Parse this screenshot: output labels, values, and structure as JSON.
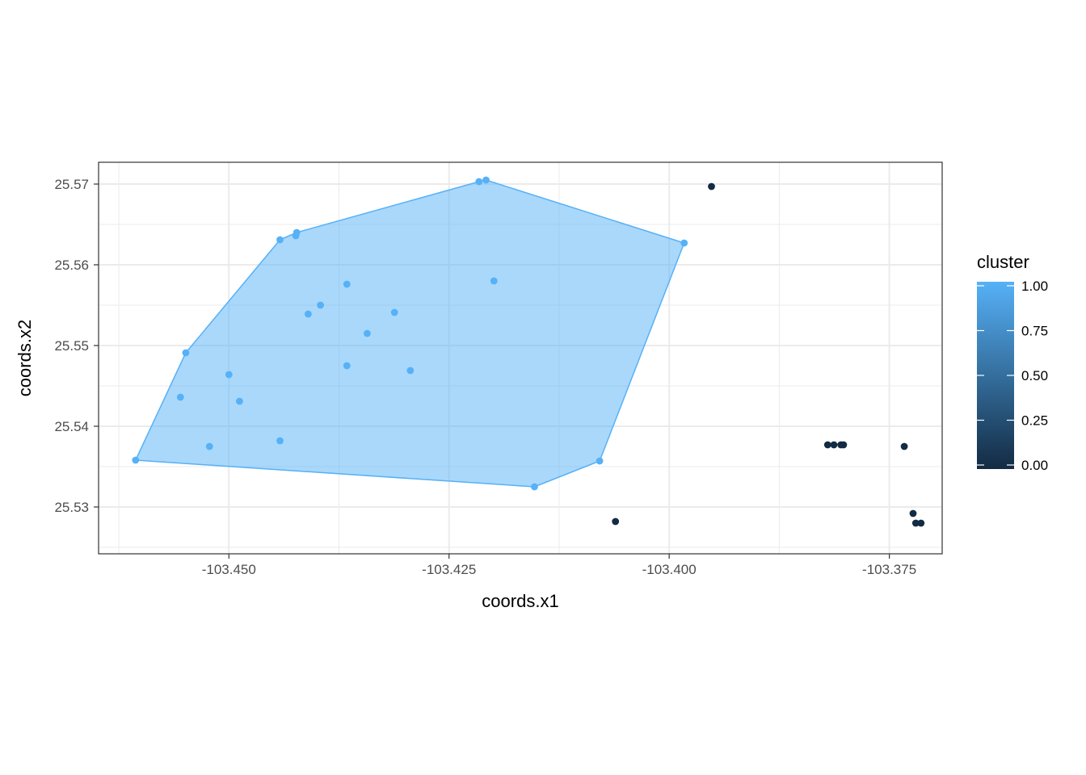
{
  "chart_data": {
    "type": "scatter",
    "title": "",
    "xlabel": "coords.x1",
    "ylabel": "coords.x2",
    "xlim": [
      -103.4648,
      -103.369
    ],
    "ylim": [
      25.5242,
      25.5727
    ],
    "x_ticks": [
      -103.45,
      -103.425,
      -103.4,
      -103.375
    ],
    "x_tick_labels": [
      "-103.450",
      "-103.425",
      "-103.400",
      "-103.375"
    ],
    "y_ticks": [
      25.53,
      25.54,
      25.55,
      25.56,
      25.57
    ],
    "y_tick_labels": [
      "25.53",
      "25.54",
      "25.55",
      "25.56",
      "25.57"
    ],
    "grid": true,
    "theme": "bw",
    "legend": {
      "title": "cluster",
      "type": "colorbar",
      "position": "right",
      "ticks": [
        0.0,
        0.25,
        0.5,
        0.75,
        1.0
      ],
      "tick_labels": [
        "0.00",
        "0.25",
        "0.50",
        "0.75",
        "1.00"
      ],
      "low_color": "#132B43",
      "high_color": "#56B1F7"
    },
    "series": [
      {
        "cluster": 1,
        "color": "#56B1F7",
        "points": [
          {
            "x": -103.4606,
            "y": 25.5358
          },
          {
            "x": -103.4555,
            "y": 25.5436
          },
          {
            "x": -103.4549,
            "y": 25.5491
          },
          {
            "x": -103.4522,
            "y": 25.5375
          },
          {
            "x": -103.45,
            "y": 25.5464
          },
          {
            "x": -103.4488,
            "y": 25.5431
          },
          {
            "x": -103.4442,
            "y": 25.5631
          },
          {
            "x": -103.4442,
            "y": 25.5382
          },
          {
            "x": -103.4424,
            "y": 25.5636
          },
          {
            "x": -103.4423,
            "y": 25.564
          },
          {
            "x": -103.441,
            "y": 25.5539
          },
          {
            "x": -103.4396,
            "y": 25.555
          },
          {
            "x": -103.4366,
            "y": 25.5576
          },
          {
            "x": -103.4366,
            "y": 25.5475
          },
          {
            "x": -103.4343,
            "y": 25.5515
          },
          {
            "x": -103.4312,
            "y": 25.5541
          },
          {
            "x": -103.4294,
            "y": 25.5469
          },
          {
            "x": -103.4216,
            "y": 25.5703
          },
          {
            "x": -103.4208,
            "y": 25.5705
          },
          {
            "x": -103.4199,
            "y": 25.558
          },
          {
            "x": -103.4153,
            "y": 25.5325
          },
          {
            "x": -103.4079,
            "y": 25.5357
          },
          {
            "x": -103.3983,
            "y": 25.5627
          }
        ],
        "hull": [
          {
            "x": -103.4606,
            "y": 25.5358
          },
          {
            "x": -103.4153,
            "y": 25.5325
          },
          {
            "x": -103.4079,
            "y": 25.5357
          },
          {
            "x": -103.3983,
            "y": 25.5627
          },
          {
            "x": -103.4208,
            "y": 25.5705
          },
          {
            "x": -103.4216,
            "y": 25.5703
          },
          {
            "x": -103.4423,
            "y": 25.564
          },
          {
            "x": -103.4442,
            "y": 25.5631
          },
          {
            "x": -103.4549,
            "y": 25.5491
          }
        ]
      },
      {
        "cluster": 0,
        "color": "#132B43",
        "points": [
          {
            "x": -103.4061,
            "y": 25.5282
          },
          {
            "x": -103.3952,
            "y": 25.5697
          },
          {
            "x": -103.382,
            "y": 25.5377
          },
          {
            "x": -103.3813,
            "y": 25.5377
          },
          {
            "x": -103.3805,
            "y": 25.5377
          },
          {
            "x": -103.3802,
            "y": 25.5377
          },
          {
            "x": -103.3733,
            "y": 25.5375
          },
          {
            "x": -103.3723,
            "y": 25.5292
          },
          {
            "x": -103.372,
            "y": 25.528
          },
          {
            "x": -103.3714,
            "y": 25.528
          }
        ]
      }
    ]
  }
}
